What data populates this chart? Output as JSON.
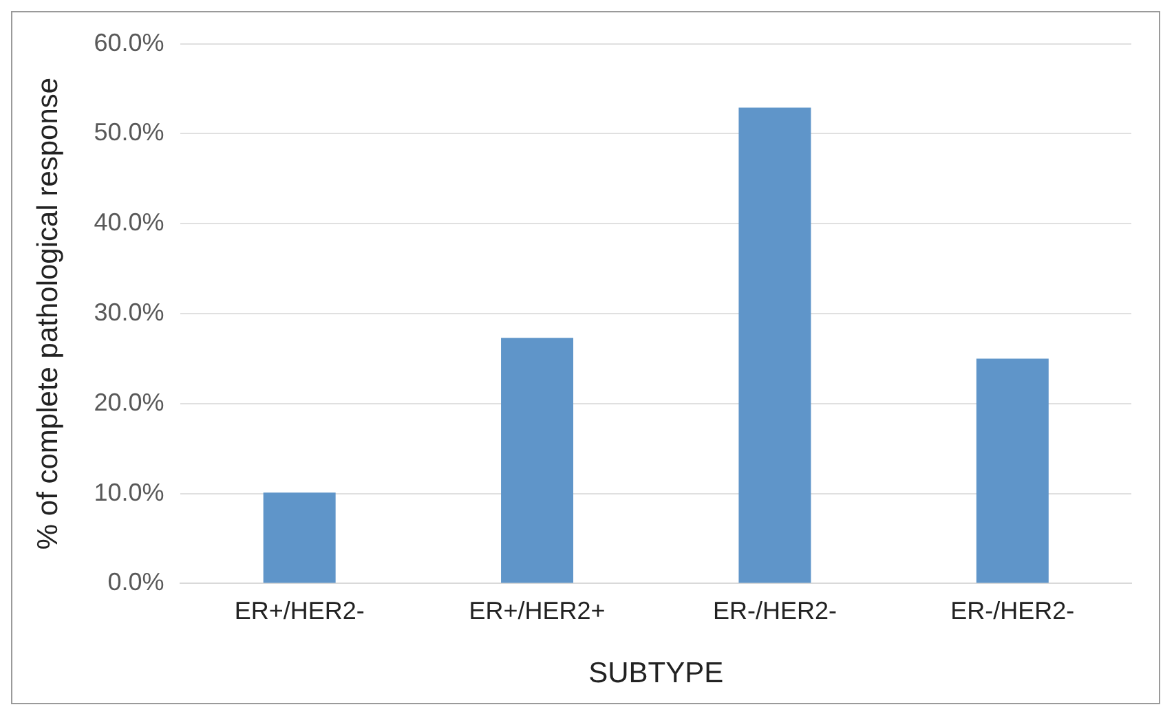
{
  "chart_data": {
    "type": "bar",
    "xlabel": "SUBTYPE",
    "ylabel": "% of complete pathological response",
    "categories": [
      "ER+/HER2-",
      "ER+/HER2+",
      "ER-/HER2-",
      "ER-/HER2-"
    ],
    "values": [
      10.1,
      27.3,
      52.9,
      25.0
    ],
    "color": "#5f95c9",
    "ylim": [
      0,
      60
    ],
    "yticks": [
      {
        "value": 0,
        "label": "0.0%"
      },
      {
        "value": 10,
        "label": "10.0%"
      },
      {
        "value": 20,
        "label": "20.0%"
      },
      {
        "value": 30,
        "label": "30.0%"
      },
      {
        "value": 40,
        "label": "40.0%"
      },
      {
        "value": 50,
        "label": "50.0%"
      },
      {
        "value": 60,
        "label": "60.0%"
      }
    ],
    "grid": "y",
    "legend": false
  }
}
